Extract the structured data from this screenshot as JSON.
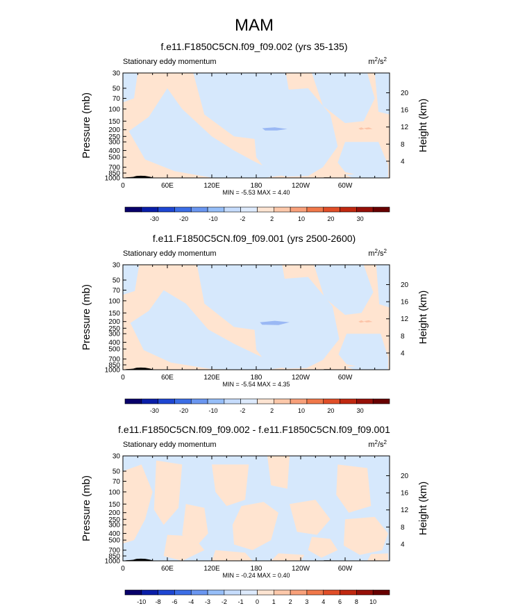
{
  "figure_title": "MAM",
  "chart_data": [
    {
      "type": "heatmap",
      "title": "f.e11.F1850C5CN.f09_f09.002 (yrs 35-135)",
      "left_label": "Stationary eddy momentum",
      "units_base": "m",
      "units_exp1": "2",
      "units_mid": "/s",
      "units_exp2": "2",
      "ylabel": "Pressure (mb)",
      "ylabel_right": "Height (km)",
      "x_ticks": [
        "0",
        "60E",
        "120E",
        "180",
        "120W",
        "60W"
      ],
      "x_range": [
        0,
        360
      ],
      "y_ticks": [
        "30",
        "50",
        "70",
        "100",
        "150",
        "200",
        "250",
        "300",
        "400",
        "500",
        "700",
        "850",
        "1000"
      ],
      "y_range_mb": [
        30,
        1000
      ],
      "log_pressure": true,
      "right_ticks": [
        "20",
        "16",
        "12",
        "8",
        "4"
      ],
      "minmax_text": "MIN = -5.53  MAX = 4.40",
      "min": -5.53,
      "max": 4.4,
      "colorbar_levels": [
        "-30",
        "-20",
        "-10",
        "-2",
        "2",
        "10",
        "20",
        "30"
      ],
      "colorbar_colors": [
        "#08006a",
        "#0a1ea8",
        "#1e46d2",
        "#3c6ee6",
        "#6a96f0",
        "#96bef8",
        "#c6dcfc",
        "#ddeafc",
        "#fde4d2",
        "#fcc8aa",
        "#f8a07a",
        "#f0784a",
        "#e04e28",
        "#c02810",
        "#961008",
        "#680000"
      ],
      "fill_base": "#ffe4d0",
      "fill_negative": "#d6e8fc",
      "fill_strong": "#9ab8f4",
      "fill_pos_strong": "#fcc4a8",
      "regions_neg": [
        [
          [
            8,
            210
          ],
          [
            35,
            130
          ],
          [
            60,
            50
          ],
          [
            80,
            100
          ],
          [
            120,
            250
          ],
          [
            150,
            400
          ],
          [
            175,
            560
          ],
          [
            200,
            760
          ],
          [
            230,
            880
          ],
          [
            190,
            1000
          ],
          [
            120,
            990
          ],
          [
            70,
            800
          ],
          [
            30,
            540
          ]
        ],
        [
          [
            95,
            30
          ],
          [
            220,
            30
          ],
          [
            230,
            130
          ],
          [
            210,
            300
          ],
          [
            150,
            250
          ],
          [
            110,
            120
          ]
        ],
        [
          [
            175,
            130
          ],
          [
            195,
            55
          ],
          [
            250,
            50
          ],
          [
            280,
            120
          ],
          [
            290,
            350
          ],
          [
            270,
            700
          ],
          [
            250,
            940
          ],
          [
            220,
            960
          ],
          [
            195,
            820
          ],
          [
            180,
            500
          ]
        ],
        [
          [
            255,
            30
          ],
          [
            330,
            30
          ],
          [
            340,
            70
          ],
          [
            325,
            150
          ],
          [
            300,
            160
          ],
          [
            270,
            90
          ]
        ],
        [
          [
            300,
            300
          ],
          [
            345,
            300
          ],
          [
            358,
            650
          ],
          [
            358,
            1000
          ],
          [
            330,
            980
          ],
          [
            300,
            820
          ],
          [
            290,
            600
          ]
        ],
        [
          [
            0,
            30
          ],
          [
            20,
            30
          ],
          [
            15,
            70
          ],
          [
            0,
            80
          ]
        ],
        [
          [
            340,
            30
          ],
          [
            360,
            30
          ],
          [
            360,
            120
          ],
          [
            345,
            110
          ]
        ],
        [
          [
            300,
            900
          ],
          [
            340,
            850
          ],
          [
            355,
            1000
          ],
          [
            310,
            1000
          ]
        ]
      ],
      "regions_strong": [
        [
          [
            188,
            190
          ],
          [
            205,
            185
          ],
          [
            222,
            195
          ],
          [
            208,
            205
          ],
          [
            192,
            205
          ]
        ]
      ],
      "regions_pos_strong": [
        [
          [
            318,
            192
          ],
          [
            322,
            185
          ],
          [
            326,
            195
          ],
          [
            321,
            200
          ]
        ],
        [
          [
            325,
            190
          ],
          [
            332,
            185
          ],
          [
            337,
            195
          ],
          [
            329,
            198
          ]
        ]
      ]
    },
    {
      "type": "heatmap",
      "title": "f.e11.F1850C5CN.f09_f09.001 (yrs 2500-2600)",
      "left_label": "Stationary eddy momentum",
      "units_base": "m",
      "units_exp1": "2",
      "units_mid": "/s",
      "units_exp2": "2",
      "ylabel": "Pressure (mb)",
      "ylabel_right": "Height (km)",
      "x_ticks": [
        "0",
        "60E",
        "120E",
        "180",
        "120W",
        "60W"
      ],
      "x_range": [
        0,
        360
      ],
      "y_ticks": [
        "30",
        "50",
        "70",
        "100",
        "150",
        "200",
        "250",
        "300",
        "400",
        "500",
        "700",
        "850",
        "1000"
      ],
      "y_range_mb": [
        30,
        1000
      ],
      "log_pressure": true,
      "right_ticks": [
        "20",
        "16",
        "12",
        "8",
        "4"
      ],
      "minmax_text": "MIN = -5.54  MAX = 4.35",
      "min": -5.54,
      "max": 4.35,
      "colorbar_levels": [
        "-30",
        "-20",
        "-10",
        "-2",
        "2",
        "10",
        "20",
        "30"
      ],
      "colorbar_colors": [
        "#08006a",
        "#0a1ea8",
        "#1e46d2",
        "#3c6ee6",
        "#6a96f0",
        "#96bef8",
        "#c6dcfc",
        "#ddeafc",
        "#fde4d2",
        "#fcc8aa",
        "#f8a07a",
        "#f0784a",
        "#e04e28",
        "#c02810",
        "#961008",
        "#680000"
      ],
      "fill_base": "#ffe4d0",
      "fill_negative": "#d6e8fc",
      "fill_strong": "#9ab8f4",
      "fill_pos_strong": "#fcc4a8",
      "regions_neg": [
        [
          [
            10,
            210
          ],
          [
            35,
            140
          ],
          [
            55,
            70
          ],
          [
            85,
            110
          ],
          [
            115,
            260
          ],
          [
            150,
            420
          ],
          [
            180,
            600
          ],
          [
            205,
            800
          ],
          [
            230,
            890
          ],
          [
            195,
            1000
          ],
          [
            120,
            980
          ],
          [
            65,
            790
          ],
          [
            28,
            520
          ]
        ],
        [
          [
            100,
            30
          ],
          [
            215,
            30
          ],
          [
            225,
            120
          ],
          [
            205,
            290
          ],
          [
            150,
            240
          ],
          [
            110,
            110
          ]
        ],
        [
          [
            175,
            120
          ],
          [
            195,
            50
          ],
          [
            250,
            45
          ],
          [
            283,
            120
          ],
          [
            292,
            360
          ],
          [
            270,
            720
          ],
          [
            248,
            945
          ],
          [
            220,
            965
          ],
          [
            195,
            830
          ],
          [
            180,
            510
          ]
        ],
        [
          [
            258,
            30
          ],
          [
            325,
            30
          ],
          [
            338,
            75
          ],
          [
            322,
            150
          ],
          [
            300,
            160
          ],
          [
            272,
            90
          ]
        ],
        [
          [
            302,
            300
          ],
          [
            348,
            300
          ],
          [
            358,
            660
          ],
          [
            358,
            1000
          ],
          [
            332,
            980
          ],
          [
            302,
            830
          ],
          [
            291,
            600
          ]
        ],
        [
          [
            0,
            30
          ],
          [
            22,
            30
          ],
          [
            16,
            72
          ],
          [
            0,
            82
          ]
        ],
        [
          [
            342,
            30
          ],
          [
            360,
            30
          ],
          [
            360,
            125
          ],
          [
            346,
            112
          ]
        ],
        [
          [
            302,
            905
          ],
          [
            338,
            860
          ],
          [
            356,
            1000
          ],
          [
            312,
            1000
          ]
        ]
      ],
      "regions_strong": [
        [
          [
            185,
            205
          ],
          [
            205,
            195
          ],
          [
            225,
            205
          ],
          [
            210,
            225
          ],
          [
            188,
            222
          ]
        ]
      ],
      "regions_pos_strong": [
        [
          [
            318,
            200
          ],
          [
            322,
            192
          ],
          [
            326,
            202
          ],
          [
            321,
            208
          ]
        ],
        [
          [
            325,
            198
          ],
          [
            332,
            192
          ],
          [
            337,
            202
          ],
          [
            329,
            206
          ]
        ]
      ]
    },
    {
      "type": "heatmap",
      "title": "f.e11.F1850C5CN.f09_f09.002 - f.e11.F1850C5CN.f09_f09.001",
      "left_label": "Stationary eddy momentum",
      "units_base": "m",
      "units_exp1": "2",
      "units_mid": "/s",
      "units_exp2": "2",
      "ylabel": "Pressure (mb)",
      "ylabel_right": "Height (km)",
      "x_ticks": [
        "0",
        "60E",
        "120E",
        "180",
        "120W",
        "60W"
      ],
      "x_range": [
        0,
        360
      ],
      "y_ticks": [
        "30",
        "50",
        "70",
        "100",
        "150",
        "200",
        "250",
        "300",
        "400",
        "500",
        "700",
        "850",
        "1000"
      ],
      "y_range_mb": [
        30,
        1000
      ],
      "log_pressure": true,
      "right_ticks": [
        "20",
        "16",
        "12",
        "8",
        "4"
      ],
      "minmax_text": "MIN = -0.24  MAX = 0.40",
      "min": -0.24,
      "max": 0.4,
      "colorbar_levels": [
        "-10",
        "-8",
        "-6",
        "-4",
        "-3",
        "-2",
        "-1",
        "0",
        "1",
        "2",
        "3",
        "4",
        "6",
        "8",
        "10"
      ],
      "colorbar_colors": [
        "#08006a",
        "#0a1ea8",
        "#1e46d2",
        "#3c6ee6",
        "#6a96f0",
        "#96bef8",
        "#c6dcfc",
        "#ddeafc",
        "#fde4d2",
        "#fcc8aa",
        "#f8a07a",
        "#f0784a",
        "#e04e28",
        "#c02810",
        "#961008",
        "#680000"
      ],
      "fill_base": "#d6e8fc",
      "fill_negative": "#ffe4d0",
      "fill_strong": "#ffe4d0",
      "fill_pos_strong": "#ffe4d0",
      "regions_neg": [
        [
          [
            0,
            50
          ],
          [
            25,
            40
          ],
          [
            40,
            100
          ],
          [
            30,
            250
          ],
          [
            15,
            500
          ],
          [
            0,
            560
          ]
        ],
        [
          [
            45,
            35
          ],
          [
            80,
            40
          ],
          [
            75,
            170
          ],
          [
            55,
            300
          ],
          [
            42,
            180
          ]
        ],
        [
          [
            85,
            150
          ],
          [
            110,
            170
          ],
          [
            115,
            400
          ],
          [
            100,
            600
          ],
          [
            80,
            420
          ]
        ],
        [
          [
            120,
            40
          ],
          [
            170,
            40
          ],
          [
            165,
            130
          ],
          [
            140,
            160
          ],
          [
            125,
            100
          ]
        ],
        [
          [
            60,
            420
          ],
          [
            95,
            440
          ],
          [
            110,
            700
          ],
          [
            80,
            1000
          ],
          [
            55,
            850
          ]
        ],
        [
          [
            160,
            160
          ],
          [
            190,
            140
          ],
          [
            210,
            200
          ],
          [
            200,
            500
          ],
          [
            175,
            700
          ],
          [
            150,
            580
          ],
          [
            148,
            300
          ]
        ],
        [
          [
            195,
            30
          ],
          [
            225,
            30
          ],
          [
            222,
            90
          ],
          [
            200,
            80
          ]
        ],
        [
          [
            225,
            150
          ],
          [
            260,
            130
          ],
          [
            280,
            250
          ],
          [
            262,
            420
          ],
          [
            235,
            380
          ]
        ],
        [
          [
            255,
            450
          ],
          [
            280,
            480
          ],
          [
            290,
            700
          ],
          [
            268,
            900
          ],
          [
            250,
            700
          ]
        ],
        [
          [
            290,
            40
          ],
          [
            330,
            45
          ],
          [
            335,
            160
          ],
          [
            305,
            200
          ],
          [
            288,
            110
          ]
        ],
        [
          [
            300,
            250
          ],
          [
            340,
            230
          ],
          [
            358,
            400
          ],
          [
            350,
            700
          ],
          [
            320,
            820
          ],
          [
            298,
            600
          ]
        ],
        [
          [
            125,
            700
          ],
          [
            165,
            760
          ],
          [
            175,
            1000
          ],
          [
            120,
            1000
          ]
        ],
        [
          [
            210,
            780
          ],
          [
            245,
            820
          ],
          [
            240,
            1000
          ],
          [
            200,
            1000
          ]
        ],
        [
          [
            335,
            800
          ],
          [
            358,
            780
          ],
          [
            358,
            1000
          ],
          [
            330,
            1000
          ]
        ]
      ],
      "regions_strong": [],
      "regions_pos_strong": []
    }
  ]
}
